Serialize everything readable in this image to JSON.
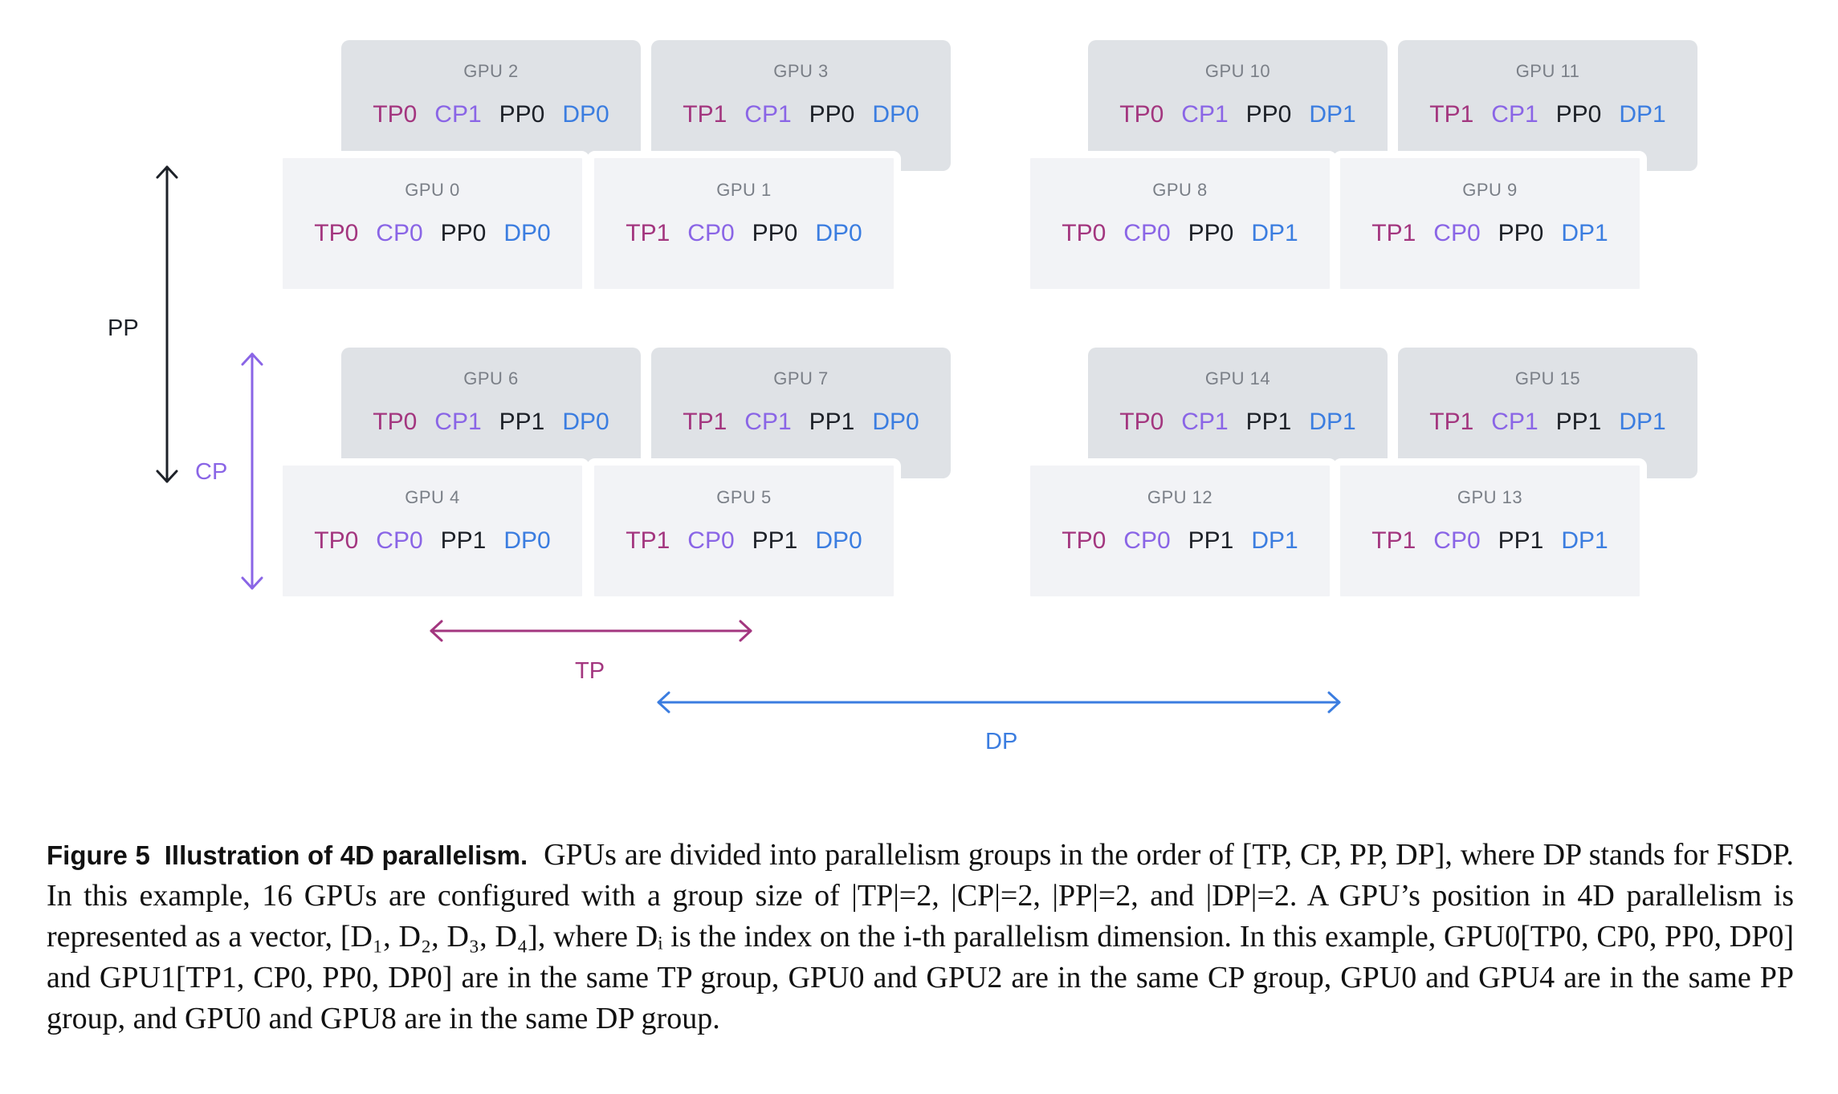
{
  "colors": {
    "tp": "#a3367f",
    "cp": "#8a65e6",
    "pp": "#1d2128",
    "dp": "#3b7de0"
  },
  "gpus": [
    {
      "name": "GPU 0",
      "tp": "TP0",
      "cp": "CP0",
      "pp": "PP0",
      "dp": "DP0"
    },
    {
      "name": "GPU 1",
      "tp": "TP1",
      "cp": "CP0",
      "pp": "PP0",
      "dp": "DP0"
    },
    {
      "name": "GPU 2",
      "tp": "TP0",
      "cp": "CP1",
      "pp": "PP0",
      "dp": "DP0"
    },
    {
      "name": "GPU 3",
      "tp": "TP1",
      "cp": "CP1",
      "pp": "PP0",
      "dp": "DP0"
    },
    {
      "name": "GPU 4",
      "tp": "TP0",
      "cp": "CP0",
      "pp": "PP1",
      "dp": "DP0"
    },
    {
      "name": "GPU 5",
      "tp": "TP1",
      "cp": "CP0",
      "pp": "PP1",
      "dp": "DP0"
    },
    {
      "name": "GPU 6",
      "tp": "TP0",
      "cp": "CP1",
      "pp": "PP1",
      "dp": "DP0"
    },
    {
      "name": "GPU 7",
      "tp": "TP1",
      "cp": "CP1",
      "pp": "PP1",
      "dp": "DP0"
    },
    {
      "name": "GPU 8",
      "tp": "TP0",
      "cp": "CP0",
      "pp": "PP0",
      "dp": "DP1"
    },
    {
      "name": "GPU 9",
      "tp": "TP1",
      "cp": "CP0",
      "pp": "PP0",
      "dp": "DP1"
    },
    {
      "name": "GPU 10",
      "tp": "TP0",
      "cp": "CP1",
      "pp": "PP0",
      "dp": "DP1"
    },
    {
      "name": "GPU 11",
      "tp": "TP1",
      "cp": "CP1",
      "pp": "PP0",
      "dp": "DP1"
    },
    {
      "name": "GPU 12",
      "tp": "TP0",
      "cp": "CP0",
      "pp": "PP1",
      "dp": "DP1"
    },
    {
      "name": "GPU 13",
      "tp": "TP1",
      "cp": "CP0",
      "pp": "PP1",
      "dp": "DP1"
    },
    {
      "name": "GPU 14",
      "tp": "TP0",
      "cp": "CP1",
      "pp": "PP1",
      "dp": "DP1"
    },
    {
      "name": "GPU 15",
      "tp": "TP1",
      "cp": "CP1",
      "pp": "PP1",
      "dp": "DP1"
    }
  ],
  "axes": {
    "pp": "PP",
    "cp": "CP",
    "tp": "TP",
    "dp": "DP"
  },
  "caption": {
    "label": "Figure 5",
    "title": "Illustration of 4D parallelism.",
    "text": "GPUs are divided into parallelism groups in the order of [TP, CP, PP, DP], where DP stands for FSDP. In this example, 16 GPUs are configured with a group size of |TP|=2, |CP|=2, |PP|=2, and |DP|=2. A GPU’s position in 4D parallelism is represented as a vector, [D₁, D₂, D₃, D₄], where Dᵢ is the index on the i-th parallelism dimension. In this example, GPU0[TP0, CP0, PP0, DP0] and GPU1[TP1, CP0, PP0, DP0] are in the same TP group, GPU0 and GPU2 are in the same CP group, GPU0 and GPU4 are in the same PP group, and GPU0 and GPU8 are in the same DP group."
  }
}
